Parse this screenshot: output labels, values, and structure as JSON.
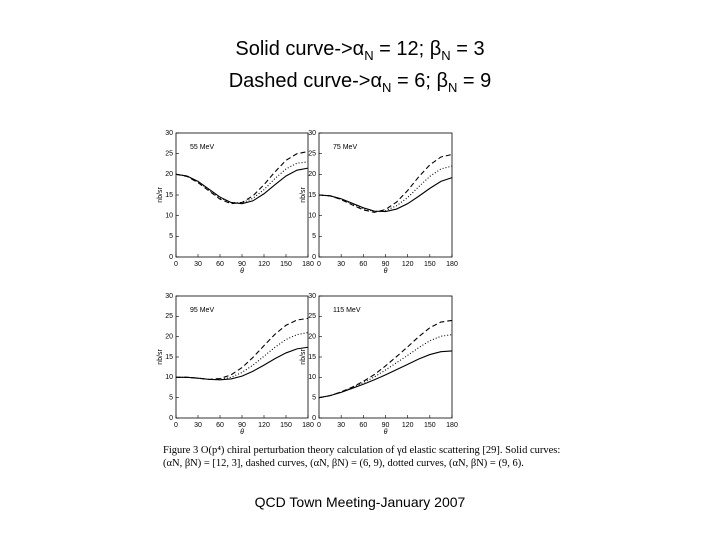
{
  "header": {
    "title_lines": [
      [
        "Solid curve->α",
        "N",
        " = 12; β",
        "N",
        " = 3"
      ],
      [
        "Dashed curve->α",
        "N",
        " = 6; β",
        "N",
        " = 9"
      ]
    ]
  },
  "chart_data": [
    {
      "type": "line",
      "annotation": "55 MeV",
      "xlabel": "θ",
      "ylabel": "nb/sr",
      "x": [
        0,
        15,
        30,
        45,
        60,
        75,
        90,
        105,
        120,
        135,
        150,
        165,
        180
      ],
      "xlim": [
        0,
        180
      ],
      "xticks": [
        0,
        30,
        60,
        90,
        120,
        150,
        180
      ],
      "ylim": [
        0,
        30
      ],
      "yticks": [
        0,
        5,
        10,
        15,
        20,
        25,
        30
      ],
      "series": [
        {
          "style": "solid",
          "color": "#000000",
          "values": [
            20,
            19.6,
            18.3,
            16.4,
            14.5,
            13.2,
            12.9,
            13.6,
            15.3,
            17.5,
            19.6,
            21,
            21.5
          ]
        },
        {
          "style": "dotted",
          "color": "#000000",
          "values": [
            20,
            19.6,
            18.2,
            16.2,
            14.3,
            13.1,
            13.1,
            14.2,
            16.3,
            19,
            21.3,
            22.7,
            23
          ]
        },
        {
          "style": "dashed",
          "color": "#000000",
          "values": [
            20,
            19.5,
            18,
            16,
            14,
            12.9,
            13.2,
            14.8,
            17.5,
            20.6,
            23.4,
            25,
            25.5
          ]
        }
      ]
    },
    {
      "type": "line",
      "annotation": "75 MeV",
      "xlabel": "θ",
      "ylabel": "nb/sr",
      "x": [
        0,
        15,
        30,
        45,
        60,
        75,
        90,
        105,
        120,
        135,
        150,
        165,
        180
      ],
      "xlim": [
        0,
        180
      ],
      "xticks": [
        0,
        30,
        60,
        90,
        120,
        150,
        180
      ],
      "ylim": [
        0,
        30
      ],
      "yticks": [
        0,
        5,
        10,
        15,
        20,
        25,
        30
      ],
      "series": [
        {
          "style": "solid",
          "color": "#000000",
          "values": [
            15,
            14.8,
            14.1,
            13,
            11.9,
            11.1,
            11,
            11.6,
            12.9,
            14.7,
            16.6,
            18.3,
            19.2
          ]
        },
        {
          "style": "dotted",
          "color": "#000000",
          "values": [
            15,
            14.8,
            14,
            12.8,
            11.7,
            11,
            11.2,
            12.4,
            14.4,
            17,
            19.5,
            21.3,
            22
          ]
        },
        {
          "style": "dashed",
          "color": "#000000",
          "values": [
            15,
            14.8,
            13.9,
            12.6,
            11.4,
            10.8,
            11.5,
            13.3,
            16.1,
            19.4,
            22.3,
            24.2,
            24.8
          ]
        }
      ]
    },
    {
      "type": "line",
      "annotation": "95 MeV",
      "xlabel": "θ",
      "ylabel": "nb/sr",
      "x": [
        0,
        15,
        30,
        45,
        60,
        75,
        90,
        105,
        120,
        135,
        150,
        165,
        180
      ],
      "xlim": [
        0,
        180
      ],
      "xticks": [
        0,
        30,
        60,
        90,
        120,
        150,
        180
      ],
      "ylim": [
        0,
        30
      ],
      "yticks": [
        0,
        5,
        10,
        15,
        20,
        25,
        30
      ],
      "series": [
        {
          "style": "solid",
          "color": "#000000",
          "values": [
            10,
            10,
            9.8,
            9.5,
            9.4,
            9.6,
            10.3,
            11.5,
            13,
            14.6,
            16,
            17,
            17.4
          ]
        },
        {
          "style": "dotted",
          "color": "#000000",
          "values": [
            10,
            10,
            9.8,
            9.5,
            9.5,
            10,
            11.2,
            13,
            15.2,
            17.4,
            19.3,
            20.5,
            21
          ]
        },
        {
          "style": "dashed",
          "color": "#000000",
          "values": [
            10,
            10,
            9.8,
            9.5,
            9.7,
            10.6,
            12.4,
            14.9,
            17.8,
            20.6,
            22.8,
            24.1,
            24.5
          ]
        }
      ]
    },
    {
      "type": "line",
      "annotation": "115 MeV",
      "xlabel": "θ",
      "ylabel": "nb/sr",
      "x": [
        0,
        15,
        30,
        45,
        60,
        75,
        90,
        105,
        120,
        135,
        150,
        165,
        180
      ],
      "xlim": [
        0,
        180
      ],
      "xticks": [
        0,
        30,
        60,
        90,
        120,
        150,
        180
      ],
      "ylim": [
        0,
        30
      ],
      "yticks": [
        0,
        5,
        10,
        15,
        20,
        25,
        30
      ],
      "series": [
        {
          "style": "solid",
          "color": "#000000",
          "values": [
            5,
            5.5,
            6.3,
            7.3,
            8.3,
            9.4,
            10.6,
            11.9,
            13.2,
            14.5,
            15.6,
            16.3,
            16.5
          ]
        },
        {
          "style": "dotted",
          "color": "#000000",
          "values": [
            5,
            5.5,
            6.4,
            7.5,
            8.7,
            10.1,
            11.8,
            13.6,
            15.4,
            17.3,
            19,
            20.1,
            20.5
          ]
        },
        {
          "style": "dashed",
          "color": "#000000",
          "values": [
            5,
            5.5,
            6.4,
            7.6,
            9,
            10.7,
            12.8,
            15.1,
            17.5,
            20,
            22.2,
            23.6,
            24
          ]
        }
      ]
    }
  ],
  "caption": [
    "Figure 3 O(p⁴) chiral perturbation theory calculation of γd elastic scattering [29]. Solid curves:",
    "(αN, βN) = [12, 3], dashed curves, (αN, βN) = (6, 9), dotted curves, (αN, βN) = (9, 6)."
  ],
  "footer": "QCD Town Meeting-January 2007"
}
